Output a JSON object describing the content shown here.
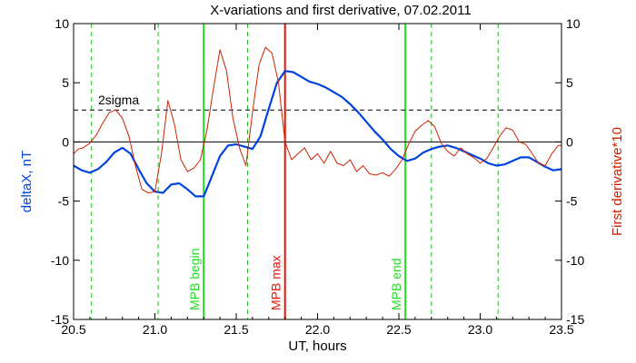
{
  "chart_data": {
    "type": "line",
    "title": "X-variations and first derivative, 07.02.2011",
    "xlabel": "UT, hours",
    "ylabel_left": "deltaX, nT",
    "ylabel_right": "First derivative*10",
    "xlim": [
      20.5,
      23.5
    ],
    "ylim": [
      -15,
      10
    ],
    "y2lim": [
      -15,
      10
    ],
    "x_ticks": [
      "20.5",
      "21.0",
      "21.5",
      "22.0",
      "22.5",
      "23.0",
      "23.5"
    ],
    "y_ticks": [
      "10",
      "5",
      "0",
      "-5",
      "-10",
      "-15"
    ],
    "y2_ticks": [
      "10",
      "5",
      "0",
      "-5",
      "-10",
      "-15"
    ],
    "threshold": {
      "label": "2sigma",
      "value": 2.7
    },
    "zero_line": 0,
    "colors": {
      "deltax": "#0044dd",
      "derivative": "#cc2200",
      "mpb": "#22dd22",
      "mpb_max": "#ee1100",
      "dashed": "#22bb22"
    },
    "vertical_lines": [
      {
        "x": 20.61,
        "style": "dashed",
        "label": ""
      },
      {
        "x": 21.02,
        "style": "dashed",
        "label": ""
      },
      {
        "x": 21.3,
        "style": "solid-green",
        "label": "MPB begin"
      },
      {
        "x": 21.57,
        "style": "dashed",
        "label": ""
      },
      {
        "x": 21.8,
        "style": "solid-red",
        "label": "MPB max"
      },
      {
        "x": 22.54,
        "style": "solid-green",
        "label": "MPB end"
      },
      {
        "x": 22.7,
        "style": "dashed",
        "label": ""
      },
      {
        "x": 23.11,
        "style": "dashed",
        "label": ""
      }
    ],
    "series": [
      {
        "axis": "left",
        "x": [
          20.5,
          20.55,
          20.6,
          20.65,
          20.7,
          20.75,
          20.8,
          20.85,
          20.9,
          20.95,
          21.0,
          21.05,
          21.1,
          21.15,
          21.2,
          21.25,
          21.3,
          21.35,
          21.4,
          21.45,
          21.5,
          21.55,
          21.6,
          21.65,
          21.7,
          21.75,
          21.8,
          21.85,
          21.9,
          21.95,
          22.0,
          22.05,
          22.1,
          22.15,
          22.2,
          22.25,
          22.3,
          22.35,
          22.4,
          22.45,
          22.5,
          22.55,
          22.6,
          22.65,
          22.7,
          22.75,
          22.8,
          22.85,
          22.9,
          22.95,
          23.0,
          23.05,
          23.1,
          23.15,
          23.2,
          23.25,
          23.3,
          23.35,
          23.4,
          23.45,
          23.5
        ],
        "values": [
          -2.0,
          -2.4,
          -2.6,
          -2.3,
          -1.7,
          -0.9,
          -0.5,
          -1.0,
          -2.3,
          -3.5,
          -4.2,
          -4.3,
          -3.6,
          -3.5,
          -4.0,
          -4.6,
          -4.6,
          -2.9,
          -1.2,
          -0.3,
          -0.2,
          -0.4,
          -0.6,
          0.5,
          2.8,
          5.0,
          6.0,
          5.9,
          5.5,
          5.1,
          4.9,
          4.6,
          4.2,
          3.8,
          3.2,
          2.5,
          1.7,
          0.9,
          0.2,
          -0.6,
          -1.2,
          -1.6,
          -1.4,
          -0.9,
          -0.6,
          -0.4,
          -0.3,
          -0.5,
          -0.8,
          -1.1,
          -1.4,
          -1.8,
          -2.0,
          -1.9,
          -1.6,
          -1.3,
          -1.3,
          -1.7,
          -2.1,
          -2.4,
          -2.3
        ]
      },
      {
        "axis": "right",
        "x": [
          20.5,
          20.53,
          20.56,
          20.6,
          20.64,
          20.68,
          20.72,
          20.76,
          20.8,
          20.84,
          20.88,
          20.92,
          20.96,
          21.0,
          21.04,
          21.08,
          21.12,
          21.16,
          21.2,
          21.24,
          21.28,
          21.32,
          21.36,
          21.4,
          21.44,
          21.48,
          21.52,
          21.56,
          21.6,
          21.64,
          21.68,
          21.72,
          21.76,
          21.8,
          21.84,
          21.88,
          21.92,
          21.96,
          22.0,
          22.04,
          22.08,
          22.12,
          22.16,
          22.2,
          22.24,
          22.28,
          22.32,
          22.36,
          22.4,
          22.44,
          22.48,
          22.52,
          22.56,
          22.6,
          22.64,
          22.68,
          22.72,
          22.76,
          22.8,
          22.84,
          22.88,
          22.92,
          22.96,
          23.0,
          23.04,
          23.08,
          23.12,
          23.16,
          23.2,
          23.24,
          23.28,
          23.32,
          23.36,
          23.4,
          23.44,
          23.48,
          23.5
        ],
        "values": [
          -1.0,
          -0.6,
          -0.5,
          -0.1,
          0.6,
          1.6,
          2.5,
          2.7,
          2.0,
          0.5,
          -2.0,
          -4.0,
          -4.3,
          -4.2,
          -1.0,
          3.5,
          1.5,
          -1.5,
          -2.5,
          -2.2,
          -1.5,
          1.0,
          4.5,
          7.8,
          6.0,
          2.0,
          -0.5,
          -2.0,
          2.5,
          6.5,
          8.0,
          7.5,
          5.0,
          0.0,
          -1.5,
          -1.0,
          -0.5,
          -1.5,
          -1.0,
          -1.8,
          -0.8,
          -1.8,
          -2.0,
          -1.5,
          -2.5,
          -2.0,
          -2.7,
          -2.8,
          -2.6,
          -2.9,
          -2.3,
          -1.5,
          -0.2,
          0.9,
          1.4,
          1.8,
          1.3,
          -0.1,
          -0.8,
          -1.2,
          -0.5,
          -1.0,
          -1.3,
          -1.8,
          -1.4,
          -0.5,
          0.5,
          1.2,
          1.0,
          0.0,
          -0.2,
          -1.0,
          -1.8,
          -2.0,
          -1.0,
          -0.3,
          -0.3
        ]
      }
    ]
  }
}
